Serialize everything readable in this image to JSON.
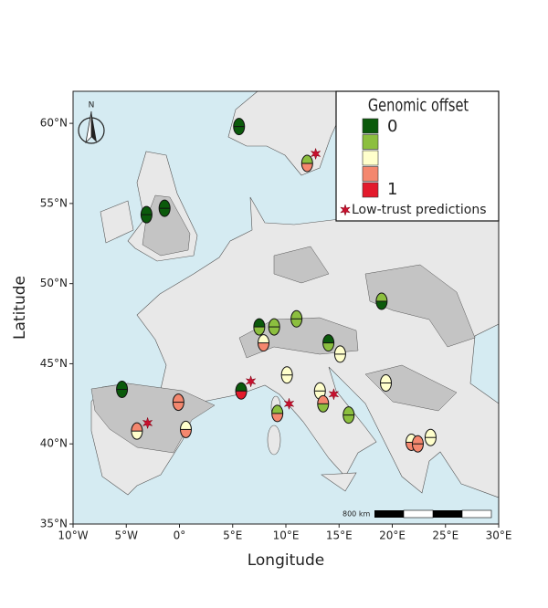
{
  "map": {
    "xlabel": "Longitude",
    "ylabel": "Latitude",
    "xlim": [
      -10,
      30
    ],
    "ylim": [
      35,
      62
    ],
    "xticks": [
      {
        "value": -10,
        "label": "10°W"
      },
      {
        "value": -5,
        "label": "5°W"
      },
      {
        "value": 0,
        "label": "0°"
      },
      {
        "value": 5,
        "label": "5°E"
      },
      {
        "value": 10,
        "label": "10°E"
      },
      {
        "value": 15,
        "label": "15°E"
      },
      {
        "value": 20,
        "label": "20°E"
      },
      {
        "value": 25,
        "label": "25°E"
      },
      {
        "value": 30,
        "label": "30°E"
      }
    ],
    "yticks": [
      {
        "value": 35,
        "label": "35°N"
      },
      {
        "value": 40,
        "label": "40°N"
      },
      {
        "value": 45,
        "label": "45°N"
      },
      {
        "value": 50,
        "label": "50°N"
      },
      {
        "value": 55,
        "label": "55°N"
      },
      {
        "value": 60,
        "label": "60°N"
      }
    ],
    "north_label": "N",
    "scale_label": "800 km",
    "legend": {
      "title": "Genomic offset",
      "colors": [
        "#0b5a0b",
        "#8cbf3f",
        "#ffffcc",
        "#f4876e",
        "#e31a2c"
      ],
      "low_label": "0",
      "high_label": "1",
      "star_label": "Low-trust predictions"
    },
    "star_color": "#c8102e",
    "points": [
      {
        "lon": 5.6,
        "lat": 59.8,
        "top": "#0b5a0b",
        "bottom": "#0b5a0b"
      },
      {
        "lon": -3.1,
        "lat": 54.3,
        "top": "#0b5a0b",
        "bottom": "#0b5a0b"
      },
      {
        "lon": -1.4,
        "lat": 54.7,
        "top": "#0b5a0b",
        "bottom": "#0b5a0b"
      },
      {
        "lon": 12.0,
        "lat": 57.5,
        "top": "#8cbf3f",
        "bottom": "#f4876e"
      },
      {
        "lon": 19.0,
        "lat": 48.9,
        "top": "#8cbf3f",
        "bottom": "#0b5a0b"
      },
      {
        "lon": 7.5,
        "lat": 47.3,
        "top": "#0b5a0b",
        "bottom": "#8cbf3f"
      },
      {
        "lon": 8.9,
        "lat": 47.3,
        "top": "#8cbf3f",
        "bottom": "#8cbf3f"
      },
      {
        "lon": 11.0,
        "lat": 47.8,
        "top": "#8cbf3f",
        "bottom": "#8cbf3f"
      },
      {
        "lon": 7.9,
        "lat": 46.3,
        "top": "#ffffcc",
        "bottom": "#f4876e"
      },
      {
        "lon": 14.0,
        "lat": 46.3,
        "top": "#0b5a0b",
        "bottom": "#8cbf3f"
      },
      {
        "lon": 15.1,
        "lat": 45.6,
        "top": "#ffffcc",
        "bottom": "#ffffcc"
      },
      {
        "lon": 10.1,
        "lat": 44.3,
        "top": "#ffffcc",
        "bottom": "#ffffcc"
      },
      {
        "lon": 5.8,
        "lat": 43.3,
        "top": "#0b5a0b",
        "bottom": "#e31a2c"
      },
      {
        "lon": 13.2,
        "lat": 43.3,
        "top": "#ffffcc",
        "bottom": "#ffffcc"
      },
      {
        "lon": 13.5,
        "lat": 42.5,
        "top": "#f4876e",
        "bottom": "#8cbf3f"
      },
      {
        "lon": 9.2,
        "lat": 41.9,
        "top": "#8cbf3f",
        "bottom": "#f4876e"
      },
      {
        "lon": 15.9,
        "lat": 41.8,
        "top": "#8cbf3f",
        "bottom": "#8cbf3f"
      },
      {
        "lon": 19.4,
        "lat": 43.8,
        "top": "#ffffcc",
        "bottom": "#ffffcc"
      },
      {
        "lon": -5.4,
        "lat": 43.4,
        "top": "#0b5a0b",
        "bottom": "#0b5a0b"
      },
      {
        "lon": -0.1,
        "lat": 42.6,
        "top": "#f4876e",
        "bottom": "#f4876e"
      },
      {
        "lon": -4.0,
        "lat": 40.8,
        "top": "#f4876e",
        "bottom": "#ffffcc"
      },
      {
        "lon": 0.6,
        "lat": 40.9,
        "top": "#ffffcc",
        "bottom": "#f4876e"
      },
      {
        "lon": 21.8,
        "lat": 40.1,
        "top": "#ffffcc",
        "bottom": "#f4876e"
      },
      {
        "lon": 22.4,
        "lat": 40.0,
        "top": "#f4876e",
        "bottom": "#f4876e"
      },
      {
        "lon": 23.6,
        "lat": 40.4,
        "top": "#ffffcc",
        "bottom": "#ffffcc"
      }
    ],
    "low_trust": [
      {
        "lon": 12.8,
        "lat": 58.1
      },
      {
        "lon": 6.7,
        "lat": 43.9
      },
      {
        "lon": 10.3,
        "lat": 42.5
      },
      {
        "lon": 14.5,
        "lat": 43.1
      },
      {
        "lon": -3.0,
        "lat": 41.3
      }
    ]
  }
}
